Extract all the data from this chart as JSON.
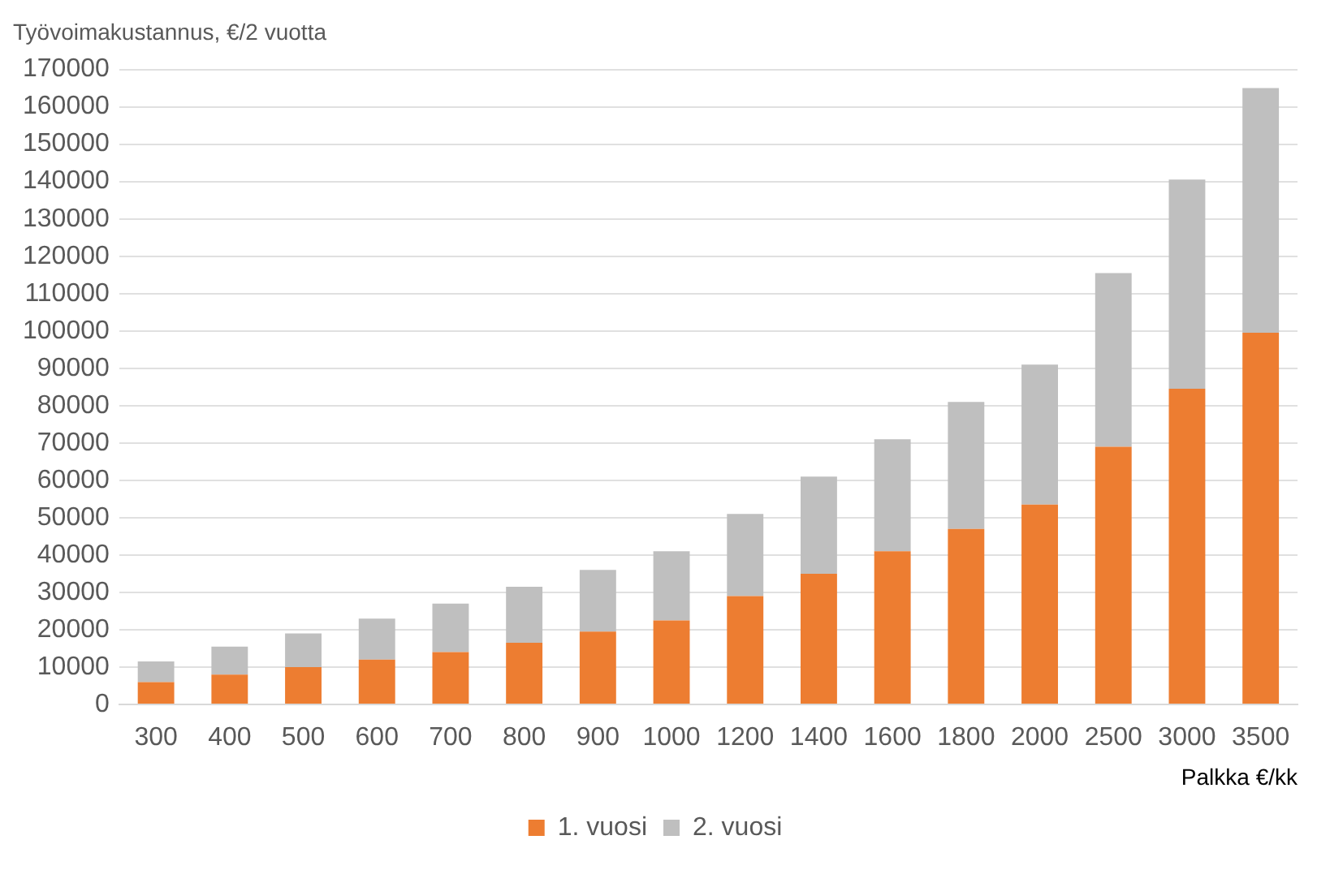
{
  "chart_data": {
    "type": "bar",
    "stacked": true,
    "ylabel": "Työvoimakustannus, €/2 vuotta",
    "xlabel": "Palkka €/kk",
    "categories": [
      "300",
      "400",
      "500",
      "600",
      "700",
      "800",
      "900",
      "1000",
      "1200",
      "1400",
      "1600",
      "1800",
      "2000",
      "2500",
      "3000",
      "3500"
    ],
    "series": [
      {
        "name": "1. vuosi",
        "color": "#ed7d31",
        "values": [
          6000,
          8000,
          10000,
          12000,
          14000,
          16500,
          19500,
          22500,
          29000,
          35000,
          41000,
          47000,
          53500,
          69000,
          84500,
          99500
        ]
      },
      {
        "name": "2. vuosi",
        "color": "#bfbfbf",
        "values": [
          5500,
          7500,
          9000,
          11000,
          13000,
          15000,
          16500,
          18500,
          22000,
          26000,
          30000,
          34000,
          37500,
          46500,
          56000,
          65500
        ]
      }
    ],
    "ylim": [
      0,
      170000
    ],
    "yticks": [
      0,
      10000,
      20000,
      30000,
      40000,
      50000,
      60000,
      70000,
      80000,
      90000,
      100000,
      110000,
      120000,
      130000,
      140000,
      150000,
      160000,
      170000
    ],
    "grid": "y",
    "legend": "bottom"
  }
}
